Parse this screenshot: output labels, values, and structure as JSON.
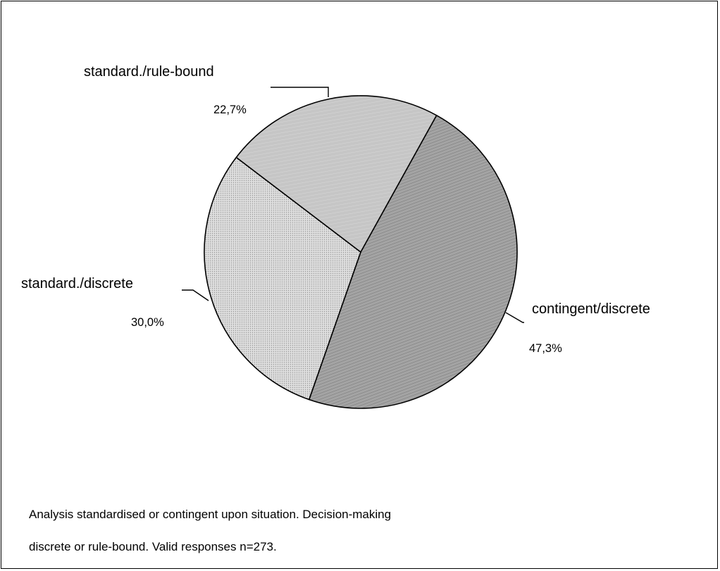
{
  "chart_data": {
    "type": "pie",
    "slices": [
      {
        "label": "contingent/discrete",
        "value": 47.3,
        "value_label": "47,3%",
        "color": "#a8a8a8",
        "pattern": "diagonal-hatch-dense"
      },
      {
        "label": "standard./discrete",
        "value": 30.0,
        "value_label": "30,0%",
        "color": "#dcdcdc",
        "pattern": "fine-dots"
      },
      {
        "label": "standard./rule-bound",
        "value": 22.7,
        "value_label": "22,7%",
        "color": "#c4c4c4",
        "pattern": "light-hatch"
      }
    ],
    "legend": "none"
  },
  "caption": {
    "line1": "Analysis standardised or contingent upon situation. Decision-making",
    "line2": "discrete or rule-bound. Valid responses n=273."
  }
}
